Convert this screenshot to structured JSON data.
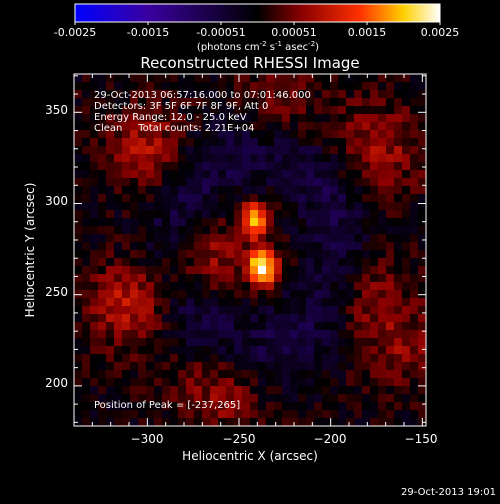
{
  "colorbar": {
    "ticks": [
      "-0.0025",
      "-0.0015",
      "-0.00051",
      "0.00051",
      "0.0015",
      "0.0025"
    ],
    "unit_label": "(photons cm",
    "unit_sup1": "-2",
    "unit_mid": " s",
    "unit_sup2": "-1",
    "unit_mid2": " asec",
    "unit_sup3": "-2",
    "unit_end": ")",
    "range": [
      -0.0025,
      0.0025
    ]
  },
  "chart_data": {
    "type": "heatmap",
    "title": "Reconstructed RHESSI Image",
    "xlabel": "Heliocentric X (arcsec)",
    "ylabel": "Heliocentric Y (arcsec)",
    "xlim": [
      -340,
      -148
    ],
    "ylim": [
      178,
      371
    ],
    "x_ticks": [
      -300,
      -250,
      -200,
      -150
    ],
    "y_ticks": [
      200,
      250,
      300,
      350
    ],
    "x_tick_labels": [
      "−300",
      "−250",
      "−200",
      "−150"
    ],
    "y_tick_labels": [
      "200",
      "250",
      "300",
      "350"
    ],
    "colormap": [
      "#0000ff",
      "#3a00a0",
      "#000000",
      "#8a0000",
      "#ff3000",
      "#ffd000",
      "#ffffff"
    ],
    "sources": [
      {
        "x": -241,
        "y": 291,
        "peak": 0.0021
      },
      {
        "x": -237,
        "y": 265,
        "peak": 0.0025
      }
    ],
    "peak_position": [
      -237,
      265
    ],
    "annotations": [
      "29-Oct-2013 06:57:16.000 to 07:01:46.000",
      "Detectors: 3F 5F 6F 7F 8F 9F, Att 0",
      "Energy Range: 12.0 - 25.0 keV",
      "Clean     Total counts: 2.21E+04"
    ],
    "peak_label": "Position of Peak = [-237,265]"
  },
  "timestamp": "29-Oct-2013 19:01"
}
